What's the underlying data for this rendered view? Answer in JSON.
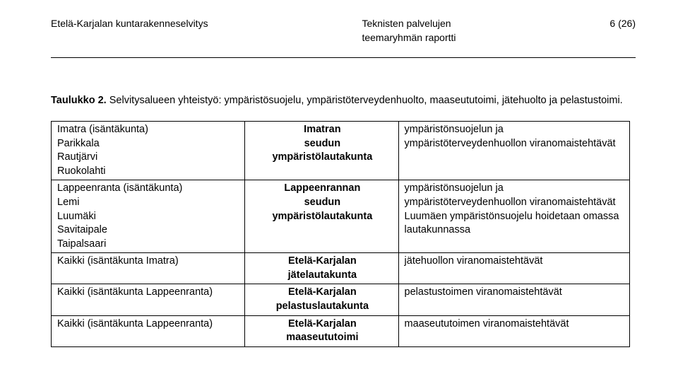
{
  "header": {
    "left": "Etelä-Karjalan kuntarakenneselvitys",
    "center_line1": "Teknisten palvelujen",
    "center_line2": "teemaryhmän raportti",
    "right": "6 (26)"
  },
  "caption": {
    "prefix": "Taulukko 2.",
    "text": " Selvitysalueen yhteistyö: ympäristösuojelu, ympäristöterveydenhuolto, maaseututoimi, jätehuolto ja pelastustoimi."
  },
  "rows": [
    {
      "col1_lines": [
        "Imatra (isäntäkunta)",
        "Parikkala",
        "Rautjärvi",
        "Ruokolahti"
      ],
      "col2_bold_lines": [
        "Imatran",
        "seudun",
        "ympäristölautakunta"
      ],
      "col3_html": "ympäristönsuojelun ja ympäristöterveydenhuollon viranomaistehtävät"
    },
    {
      "col1_lines": [
        "Lappeenranta (isäntäkunta)",
        "Lemi",
        "Luumäki",
        "Savitaipale",
        "Taipalsaari"
      ],
      "col2_bold_lines": [
        "Lappeenrannan",
        "seudun",
        "ympäristölautakunta"
      ],
      "col3_html": "ympäristönsuojelun ja ympäristöterveydenhuollon viranomaistehtävät\nLuumäen ympäristönsuojelu hoidetaan omassa lautakunnassa"
    },
    {
      "col1_lines": [
        "Kaikki (isäntäkunta Imatra)"
      ],
      "col2_bold_lines": [
        "Etelä-Karjalan",
        "jätelautakunta"
      ],
      "col3_html": "jätehuollon viranomaistehtävät"
    },
    {
      "col1_lines": [
        "Kaikki (isäntäkunta Lappeenranta)"
      ],
      "col2_bold_lines": [
        "Etelä-Karjalan",
        "pelastuslautakunta"
      ],
      "col3_html": "pelastustoimen viranomaistehtävät"
    },
    {
      "col1_lines": [
        "Kaikki (isäntäkunta Lappeenranta)"
      ],
      "col2_bold_lines": [
        "Etelä-Karjalan",
        "maaseututoimi"
      ],
      "col3_html": "maaseututoimen viranomaistehtävät"
    }
  ]
}
